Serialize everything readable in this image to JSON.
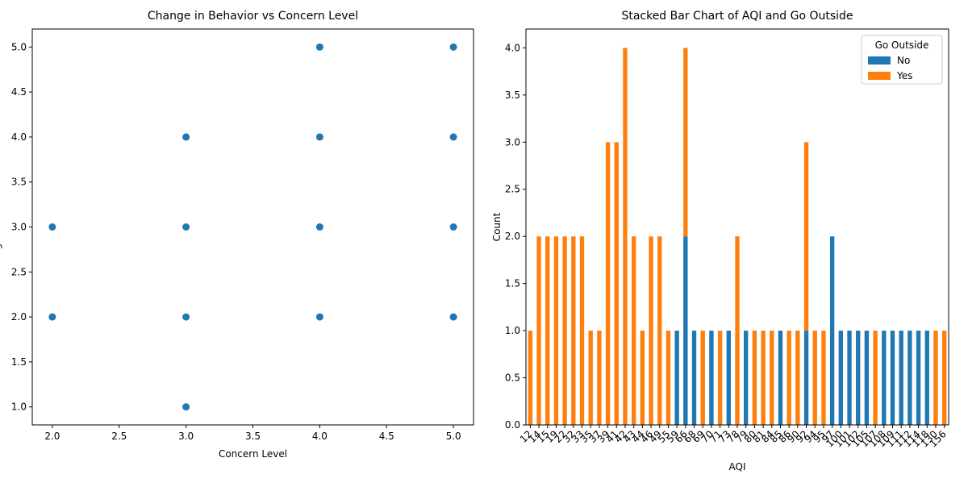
{
  "chart_data": [
    {
      "type": "scatter",
      "title": "Change in Behavior vs Concern Level",
      "x_label": "Concern Level",
      "y_label": "Change in Behavior",
      "color": "#1f77b4",
      "x": [
        2,
        2,
        3,
        3,
        3,
        3,
        4,
        4,
        4,
        4,
        5,
        5,
        5,
        5
      ],
      "y": [
        3,
        2,
        4,
        3,
        2,
        1,
        5,
        4,
        3,
        2,
        5,
        4,
        3,
        2
      ],
      "xlim": [
        1.85,
        5.15
      ],
      "ylim": [
        0.8,
        5.2
      ],
      "xticks": [
        {
          "value": 2,
          "label": "2.0"
        },
        {
          "value": 2.5,
          "label": "2.5"
        },
        {
          "value": 3,
          "label": "3.0"
        },
        {
          "value": 3.5,
          "label": "3.5"
        },
        {
          "value": 4,
          "label": "4.0"
        },
        {
          "value": 4.5,
          "label": "4.5"
        },
        {
          "value": 5,
          "label": "5.0"
        }
      ],
      "yticks": [
        {
          "value": 1,
          "label": "1.0"
        },
        {
          "value": 1.5,
          "label": "1.5"
        },
        {
          "value": 2,
          "label": "2.0"
        },
        {
          "value": 2.5,
          "label": "2.5"
        },
        {
          "value": 3,
          "label": "3.0"
        },
        {
          "value": 3.5,
          "label": "3.5"
        },
        {
          "value": 4,
          "label": "4.0"
        },
        {
          "value": 4.5,
          "label": "4.5"
        },
        {
          "value": 5,
          "label": "5.0"
        }
      ]
    },
    {
      "type": "bar",
      "stacked": true,
      "title": "Stacked Bar Chart of AQI and Go Outside",
      "x_label": "AQI",
      "y_label": "Count",
      "legend_title": "Go Outside",
      "legend": "upper right",
      "categories": [
        "12",
        "14",
        "15",
        "19",
        "22",
        "32",
        "33",
        "35",
        "37",
        "39",
        "41",
        "42",
        "43",
        "44",
        "46",
        "49",
        "55",
        "59",
        "66",
        "68",
        "69",
        "70",
        "71",
        "73",
        "78",
        "79",
        "80",
        "81",
        "84",
        "85",
        "86",
        "90",
        "92",
        "94",
        "95",
        "97",
        "100",
        "101",
        "102",
        "105",
        "107",
        "108",
        "109",
        "111",
        "112",
        "114",
        "118",
        "130",
        "156"
      ],
      "series": [
        {
          "name": "No",
          "color": "#1f77b4",
          "values": [
            0,
            0,
            0,
            0,
            0,
            0,
            0,
            0,
            0,
            0,
            0,
            0,
            0,
            0,
            0,
            0,
            0,
            1,
            2,
            1,
            0,
            1,
            0,
            1,
            0,
            1,
            0,
            0,
            0,
            1,
            0,
            0,
            1,
            0,
            0,
            2,
            1,
            1,
            1,
            1,
            0,
            1,
            1,
            1,
            1,
            1,
            1,
            0,
            0
          ]
        },
        {
          "name": "Yes",
          "color": "#ff7f0e",
          "values": [
            1,
            2,
            2,
            2,
            2,
            2,
            2,
            1,
            1,
            3,
            3,
            4,
            2,
            1,
            2,
            2,
            1,
            0,
            2,
            0,
            1,
            0,
            1,
            0,
            2,
            0,
            1,
            1,
            1,
            0,
            1,
            1,
            2,
            1,
            1,
            0,
            0,
            0,
            0,
            0,
            1,
            0,
            0,
            0,
            0,
            0,
            0,
            1,
            1
          ]
        }
      ],
      "ylim": [
        0,
        4.2
      ],
      "yticks": [
        {
          "value": 0,
          "label": "0.0"
        },
        {
          "value": 0.5,
          "label": "0.5"
        },
        {
          "value": 1,
          "label": "1.0"
        },
        {
          "value": 1.5,
          "label": "1.5"
        },
        {
          "value": 2,
          "label": "2.0"
        },
        {
          "value": 2.5,
          "label": "2.5"
        },
        {
          "value": 3,
          "label": "3.0"
        },
        {
          "value": 3.5,
          "label": "3.5"
        },
        {
          "value": 4,
          "label": "4.0"
        }
      ]
    }
  ]
}
